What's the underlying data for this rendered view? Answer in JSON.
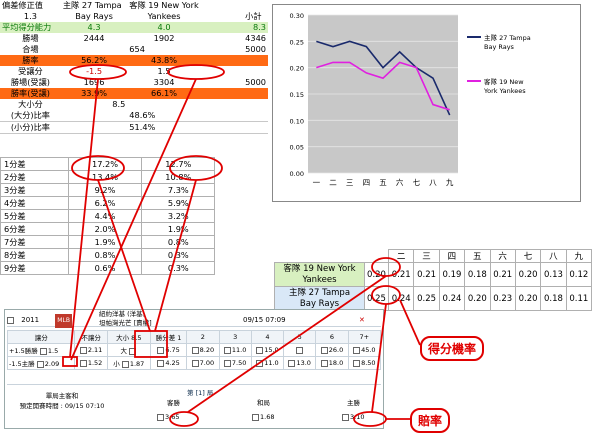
{
  "stats": {
    "header": {
      "label": "偏差修正值",
      "home": "主隊 27 Tampa",
      "away": "客隊 19 New York",
      "value": "1.3",
      "home_team": "Bay Rays",
      "away_team": "Yankees",
      "subtotal": "小計"
    },
    "avg_score": {
      "label": "平均得分能力",
      "home": "4.3",
      "away": "4.0",
      "total": "8.3"
    },
    "win_pts": {
      "label": "勝場",
      "home": "2444",
      "away": "1902",
      "total": "4346"
    },
    "games": {
      "label": "合場",
      "mid": "654",
      "total": "5000"
    },
    "win_rate": {
      "label": "勝率",
      "home": "56.2%",
      "away": "43.8%"
    },
    "handicap": {
      "label": "受讓分",
      "home": "-1.5",
      "away": "1.5"
    },
    "handicap_wins": {
      "label": "勝場(受讓)",
      "home": "1696",
      "away": "3304",
      "total": "5000"
    },
    "handicap_rate": {
      "label": "勝率(受讓)",
      "home": "33.9%",
      "away": "66.1%"
    },
    "over_under": {
      "label": "大小分",
      "value": "8.5"
    },
    "over_rate": {
      "label": "(大分)比率",
      "value": "48.6%"
    },
    "under_rate": {
      "label": "(小分)比率",
      "value": "51.4%"
    }
  },
  "margins": [
    {
      "label": "1分差",
      "home": "17.2%",
      "away": "12.7%"
    },
    {
      "label": "2分差",
      "home": "13.4%",
      "away": "10.8%"
    },
    {
      "label": "3分差",
      "home": "9.2%",
      "away": "7.3%"
    },
    {
      "label": "4分差",
      "home": "6.2%",
      "away": "5.9%"
    },
    {
      "label": "5分差",
      "home": "4.4%",
      "away": "3.2%"
    },
    {
      "label": "6分差",
      "home": "2.0%",
      "away": "1.9%"
    },
    {
      "label": "7分差",
      "home": "1.9%",
      "away": "0.8%"
    },
    {
      "label": "8分差",
      "home": "0.8%",
      "away": "0.3%"
    },
    {
      "label": "9分差",
      "home": "0.6%",
      "away": "0.3%"
    }
  ],
  "chart_data": {
    "type": "line",
    "categories": [
      "一",
      "二",
      "三",
      "四",
      "五",
      "六",
      "七",
      "八",
      "九"
    ],
    "ylim": [
      0,
      0.3
    ],
    "yticks": [
      "0.00",
      "0.05",
      "0.10",
      "0.15",
      "0.20",
      "0.25",
      "0.30"
    ],
    "grid": true,
    "legend_position": "right",
    "series": [
      {
        "name": "主隊 27 Tampa Bay Rays",
        "color": "#1a2a6c",
        "values": [
          0.25,
          0.24,
          0.25,
          0.24,
          0.2,
          0.23,
          0.2,
          0.18,
          0.11
        ]
      },
      {
        "name": "客隊 19 New York Yankees",
        "color": "#e020e0",
        "values": [
          0.2,
          0.21,
          0.21,
          0.19,
          0.18,
          0.21,
          0.2,
          0.13,
          0.12
        ]
      }
    ]
  },
  "prob_table": {
    "innings": [
      "二",
      "三",
      "四",
      "五",
      "六",
      "七",
      "八",
      "九"
    ],
    "away": {
      "label1": "客隊 19 New York",
      "label2": "Yankees",
      "first": "0.20",
      "values": [
        "0.21",
        "0.21",
        "0.19",
        "0.18",
        "0.21",
        "0.20",
        "0.13",
        "0.12"
      ]
    },
    "home": {
      "label1": "主隊 27 Tampa",
      "label2": "Bay Rays",
      "first": "0.25",
      "values": [
        "0.24",
        "0.25",
        "0.24",
        "0.20",
        "0.23",
        "0.20",
        "0.18",
        "0.11"
      ]
    }
  },
  "bet": {
    "year": "2011",
    "game_title": "紐約洋基 (洋基)",
    "game_sub": "坦帕灣光芒 [賣權]",
    "datetime": "09/15 07:09",
    "headers": [
      "讓分",
      "不讓分",
      "大小 8.5",
      "勝分差 1",
      "2",
      "3",
      "4",
      "5",
      "6",
      "7+"
    ],
    "row1": {
      "hcap": "+1.5勝勝",
      "hcap_v": "1.5",
      "nohcap": "2.11",
      "big": "大",
      "big_v": "",
      "m1": "6.75",
      "m1b": "8.20",
      "m3": "11.0",
      "m4": "15.0",
      "m5": "",
      "m6": "26.0",
      "m6b": "",
      "m7": "45.0"
    },
    "row2": {
      "hcap": "-1.5主勝",
      "hcap_v": "2.09",
      "nohcap": "1.52",
      "small": "小",
      "small_v": "1.87",
      "m1": "4.25",
      "m1b": "7.00",
      "m2": "7.50",
      "m3": "11.0",
      "m4": "13.0",
      "m5": "18.0",
      "m6": "",
      "m7": "8.50"
    },
    "inning_label": "第 [1] 局",
    "first_title": "單局主客和",
    "first_time": "預定開賽時間 : 09/15 07:10",
    "col_away": "客勝",
    "col_draw": "和局",
    "col_home": "主勝",
    "odds_away": "3.65",
    "odds_draw": "1.68",
    "odds_home": "3.10"
  },
  "annotations": {
    "score_prob": "得分機率",
    "odds": "賠率"
  }
}
